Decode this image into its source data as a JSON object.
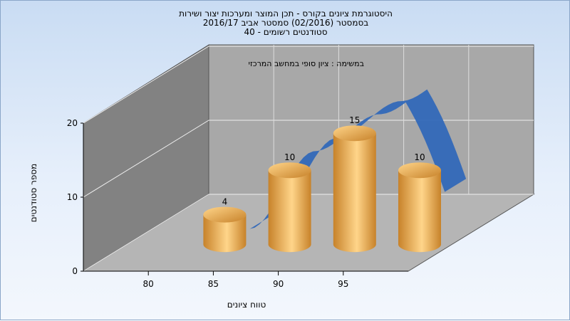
{
  "chart_data": {
    "type": "bar",
    "title": "היסטוגרמת ציונים בקורס - תכן המוצר ומערכות יצור ושירות",
    "subtitle": "בסמסטר (02/2016) סמסטר אביב 2016/17",
    "subtitle2": "סטודנטים רשומים - 40",
    "annotation": "במשימה : ציון סופי במחשב המרכזי",
    "xlabel": "טווח ציונים",
    "ylabel": "מספר סטודנטים",
    "categories": [
      "80",
      "85",
      "90",
      "95"
    ],
    "bar_values": [
      4,
      10,
      15,
      10
    ],
    "x_ticks": [
      "80",
      "85",
      "90",
      "95"
    ],
    "y_ticks": [
      "0",
      "10",
      "20"
    ],
    "ylim": [
      0,
      20
    ],
    "curve_x": [
      82.5,
      87.5,
      92.5,
      97.5
    ],
    "curve_y": [
      0.0,
      10.5,
      15.5,
      20.0
    ],
    "colors": {
      "bar_light": "#ffd58a",
      "bar_dark": "#c7822a",
      "curve": "#3268b8",
      "back_wall": "#a8a8a8",
      "left_wall": "#828282",
      "floor": "#b5b5b5"
    }
  }
}
